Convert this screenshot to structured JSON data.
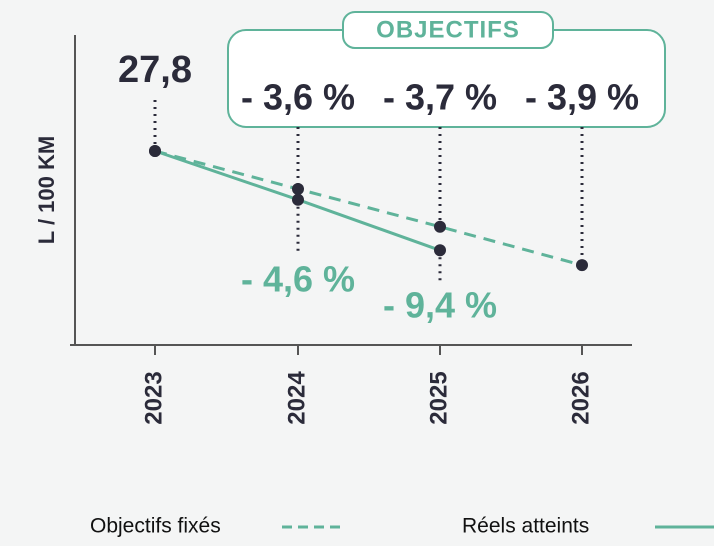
{
  "chart_data": {
    "type": "line",
    "ylabel": "L / 100 KM",
    "categories": [
      "2023",
      "2024",
      "2025",
      "2026"
    ],
    "ylim": [
      22.7,
      30.85
    ],
    "series": [
      {
        "name": "Objectifs fixés",
        "color": "#5fb39a",
        "dashed": true,
        "values": [
          27.8,
          26.8,
          25.81,
          24.8
        ]
      },
      {
        "name": "Réels atteints",
        "color": "#5fb39a",
        "dashed": false,
        "values": [
          27.8,
          26.52,
          25.19,
          null
        ]
      }
    ],
    "annotations": {
      "start": "27,8",
      "box_title": "OBJECTIFS",
      "objectives": [
        "- 3,6 %",
        "- 3,7 %",
        "- 3,9 %"
      ],
      "achieved": [
        "- 4,6 %",
        "- 9,4 %"
      ]
    }
  }
}
